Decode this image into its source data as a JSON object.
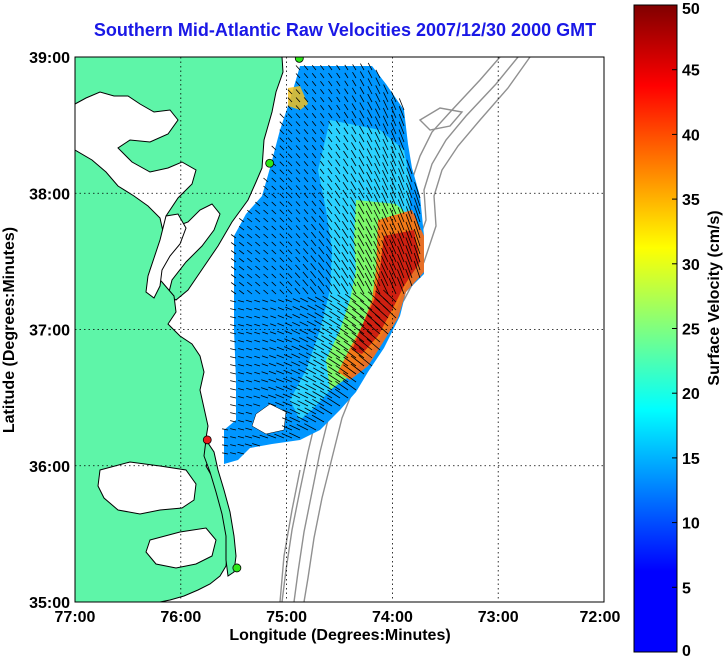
{
  "title": "Southern Mid-Atlantic Raw Velocities 2007/12/30 2000 GMT",
  "xlabel": "Longitude (Degrees:Minutes)",
  "ylabel": "Latitude (Degrees:Minutes)",
  "colorbar": {
    "label": "Surface Velocity (cm/s)",
    "range": [
      0,
      50
    ],
    "ticks": [
      "0",
      "5",
      "10",
      "15",
      "20",
      "25",
      "30",
      "35",
      "40",
      "45",
      "50"
    ]
  },
  "axes": {
    "x_range": [
      -77,
      -72
    ],
    "y_range": [
      35,
      39
    ],
    "x_ticks": [
      "77:00",
      "76:00",
      "75:00",
      "74:00",
      "73:00",
      "72:00"
    ],
    "y_ticks": [
      "35:00",
      "36:00",
      "37:00",
      "38:00",
      "39:00"
    ]
  },
  "colors": {
    "land": "#5ef5a8",
    "coast": "#000000",
    "bathymetry": "#909090",
    "title": "#1a18e6",
    "station_green": "#2ee81a",
    "station_red": "#e81a1a"
  },
  "stations": [
    {
      "lon": -74.88,
      "lat": 38.99,
      "status": "green"
    },
    {
      "lon": -75.16,
      "lat": 38.22,
      "status": "green"
    },
    {
      "lon": -75.75,
      "lat": 36.19,
      "status": "red"
    },
    {
      "lon": -75.47,
      "lat": 35.25,
      "status": "green"
    }
  ]
}
